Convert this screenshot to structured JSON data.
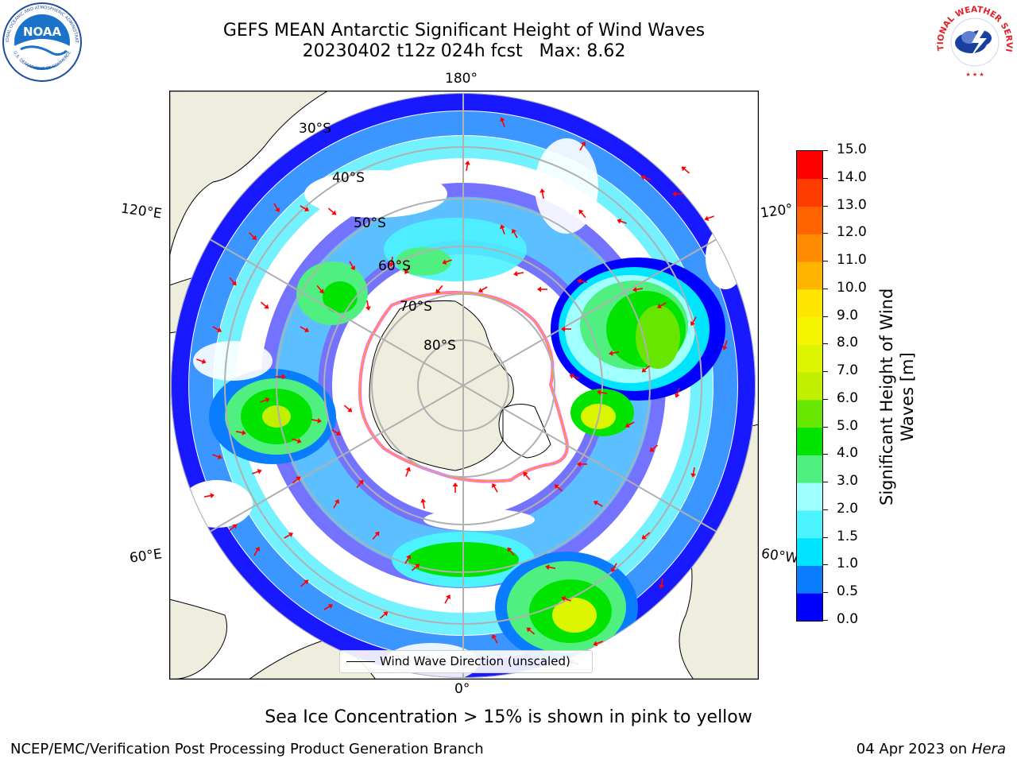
{
  "title": {
    "line1": "GEFS MEAN Antarctic Significant Height of Wind Waves",
    "line2": "20230402 t12z 024h fcst   Max: 8.62"
  },
  "logos": {
    "left": {
      "name": "NOAA",
      "text": "NOAA",
      "ring_text": "NATIONAL OCEANIC AND ATMOSPHERIC ADMINISTRATION · U.S. DEPARTMENT OF COMMERCE"
    },
    "right": {
      "name": "National Weather Service",
      "ring_text": "NATIONAL WEATHER SERVICE"
    }
  },
  "map": {
    "projection": "south polar stereographic",
    "longitude_labels": {
      "top": "180°",
      "bottom": "0°",
      "upper_left": "120°E",
      "upper_right": "120°",
      "lower_left": "60°E",
      "lower_right": "60°W"
    },
    "latitude_labels": [
      "30°S",
      "40°S",
      "50°S",
      "60°S",
      "70°S",
      "80°S"
    ],
    "legend": "Wind Wave Direction (unscaled)",
    "colors": {
      "land": "#efedde",
      "ocean_no_data": "#ffffff",
      "arrow": "#ff0000",
      "grid": "#b0b0b0",
      "ice_edge": [
        "#ff66ff",
        "#ffa500",
        "#ffff00"
      ]
    }
  },
  "colorbar": {
    "label": "Significant Height of Wind Waves [m]",
    "label_lines": [
      "Significant Height of Wind",
      "Waves [m]"
    ],
    "ticks": [
      "15.0",
      "14.0",
      "13.0",
      "12.0",
      "11.0",
      "10.0",
      "9.0",
      "8.0",
      "7.0",
      "6.0",
      "5.0",
      "4.0",
      "3.0",
      "2.0",
      "1.5",
      "1.0",
      "0.5",
      "0.0"
    ],
    "bins": [
      {
        "range": [
          0.0,
          0.5
        ],
        "color": "#0000ff"
      },
      {
        "range": [
          0.5,
          1.0
        ],
        "color": "#0a7cff"
      },
      {
        "range": [
          1.0,
          1.5
        ],
        "color": "#00e5ff"
      },
      {
        "range": [
          1.5,
          2.0
        ],
        "color": "#4df2ff"
      },
      {
        "range": [
          2.0,
          3.0
        ],
        "color": "#a0ffff"
      },
      {
        "range": [
          3.0,
          4.0
        ],
        "color": "#50f080"
      },
      {
        "range": [
          4.0,
          5.0
        ],
        "color": "#00e400"
      },
      {
        "range": [
          5.0,
          6.0
        ],
        "color": "#66e600"
      },
      {
        "range": [
          6.0,
          7.0
        ],
        "color": "#c0f000"
      },
      {
        "range": [
          7.0,
          8.0
        ],
        "color": "#dcf500"
      },
      {
        "range": [
          8.0,
          9.0
        ],
        "color": "#f5f500"
      },
      {
        "range": [
          9.0,
          10.0
        ],
        "color": "#ffe600"
      },
      {
        "range": [
          10.0,
          11.0
        ],
        "color": "#ffb400"
      },
      {
        "range": [
          11.0,
          12.0
        ],
        "color": "#ff8c00"
      },
      {
        "range": [
          12.0,
          13.0
        ],
        "color": "#ff6400"
      },
      {
        "range": [
          13.0,
          14.0
        ],
        "color": "#ff3c00"
      },
      {
        "range": [
          14.0,
          15.0
        ],
        "color": "#ff0000"
      }
    ]
  },
  "note": "Sea Ice Concentration > 15% is shown in pink to yellow",
  "footer": {
    "left": "NCEP/EMC/Verification Post Processing Product Generation Branch",
    "right_prefix": "04 Apr 2023 on ",
    "right_host": "Hera"
  }
}
